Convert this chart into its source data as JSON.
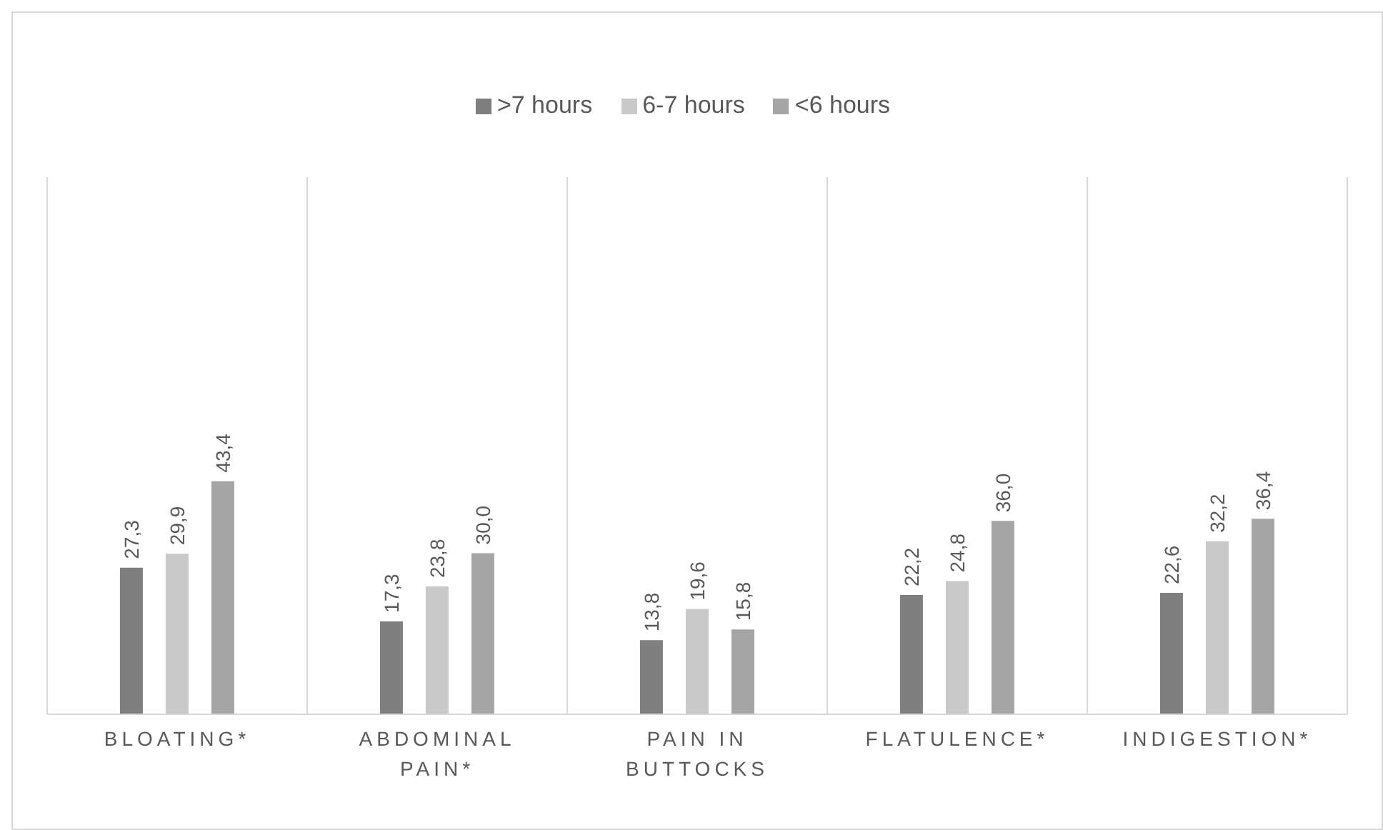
{
  "chart_data": {
    "type": "bar",
    "categories": [
      "BLOATING*",
      "ABDOMINAL PAIN*",
      "PAIN IN BUTTOCKS",
      "FLATULENCE*",
      "INDIGESTION*"
    ],
    "series": [
      {
        "name": ">7 hours",
        "color": "#7f7f7f",
        "values": [
          27.3,
          17.3,
          13.8,
          22.2,
          22.6
        ],
        "value_labels": [
          "27,3",
          "17,3",
          "13,8",
          "22,2",
          "22,6"
        ]
      },
      {
        "name": "6-7 hours",
        "color": "#c9c9c9",
        "values": [
          29.9,
          23.8,
          19.6,
          24.8,
          32.2
        ],
        "value_labels": [
          "29,9",
          "23,8",
          "19,6",
          "24,8",
          "32,2"
        ]
      },
      {
        "name": "<6 hours",
        "color": "#a5a5a5",
        "values": [
          43.4,
          30.0,
          15.8,
          36.0,
          36.4
        ],
        "value_labels": [
          "43,4",
          "30,0",
          "15,8",
          "36,0",
          "36,4"
        ]
      }
    ],
    "ylim": [
      0,
      100
    ],
    "tick_labels": "x",
    "grid": "x",
    "legend": "top"
  }
}
